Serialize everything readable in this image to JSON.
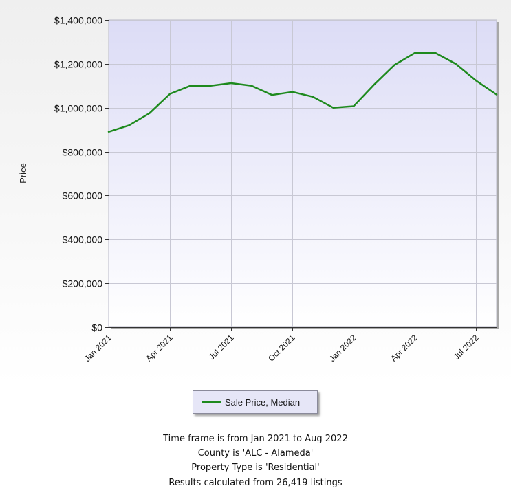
{
  "chart_data": {
    "type": "line",
    "ylabel": "Price",
    "xlabel": "",
    "ylim": [
      0,
      1400000
    ],
    "y_ticks": [
      "$0",
      "$200,000",
      "$400,000",
      "$600,000",
      "$800,000",
      "$1,000,000",
      "$1,200,000",
      "$1,400,000"
    ],
    "y_tick_values": [
      0,
      200000,
      400000,
      600000,
      800000,
      1000000,
      1200000,
      1400000
    ],
    "x_ticks": [
      "Jan 2021",
      "Apr 2021",
      "Jul 2021",
      "Oct 2021",
      "Jan 2022",
      "Apr 2022",
      "Jul 2022"
    ],
    "x_tick_months": [
      "2021-01",
      "2021-04",
      "2021-07",
      "2021-10",
      "2022-01",
      "2022-04",
      "2022-07"
    ],
    "x": [
      "2021-01",
      "2021-02",
      "2021-03",
      "2021-04",
      "2021-05",
      "2021-06",
      "2021-07",
      "2021-08",
      "2021-09",
      "2021-10",
      "2021-11",
      "2021-12",
      "2022-01",
      "2022-02",
      "2022-03",
      "2022-04",
      "2022-05",
      "2022-06",
      "2022-07",
      "2022-08"
    ],
    "series": [
      {
        "name": "Sale Price, Median",
        "color": "#1e8a1e",
        "values": [
          890000,
          920000,
          975000,
          1063000,
          1100000,
          1100000,
          1112000,
          1100000,
          1058000,
          1072000,
          1050000,
          1000000,
          1007000,
          1105000,
          1195000,
          1250000,
          1250000,
          1200000,
          1123000,
          1060000
        ]
      }
    ],
    "grid": true,
    "legend_position": "bottom"
  },
  "legend": {
    "label": "Sale Price, Median"
  },
  "footer": {
    "line1": "Time frame is from Jan 2021 to Aug 2022",
    "line2": "County is 'ALC - Alameda'",
    "line3": "Property Type is 'Residential'",
    "line4": "Results calculated from 26,419 listings"
  }
}
